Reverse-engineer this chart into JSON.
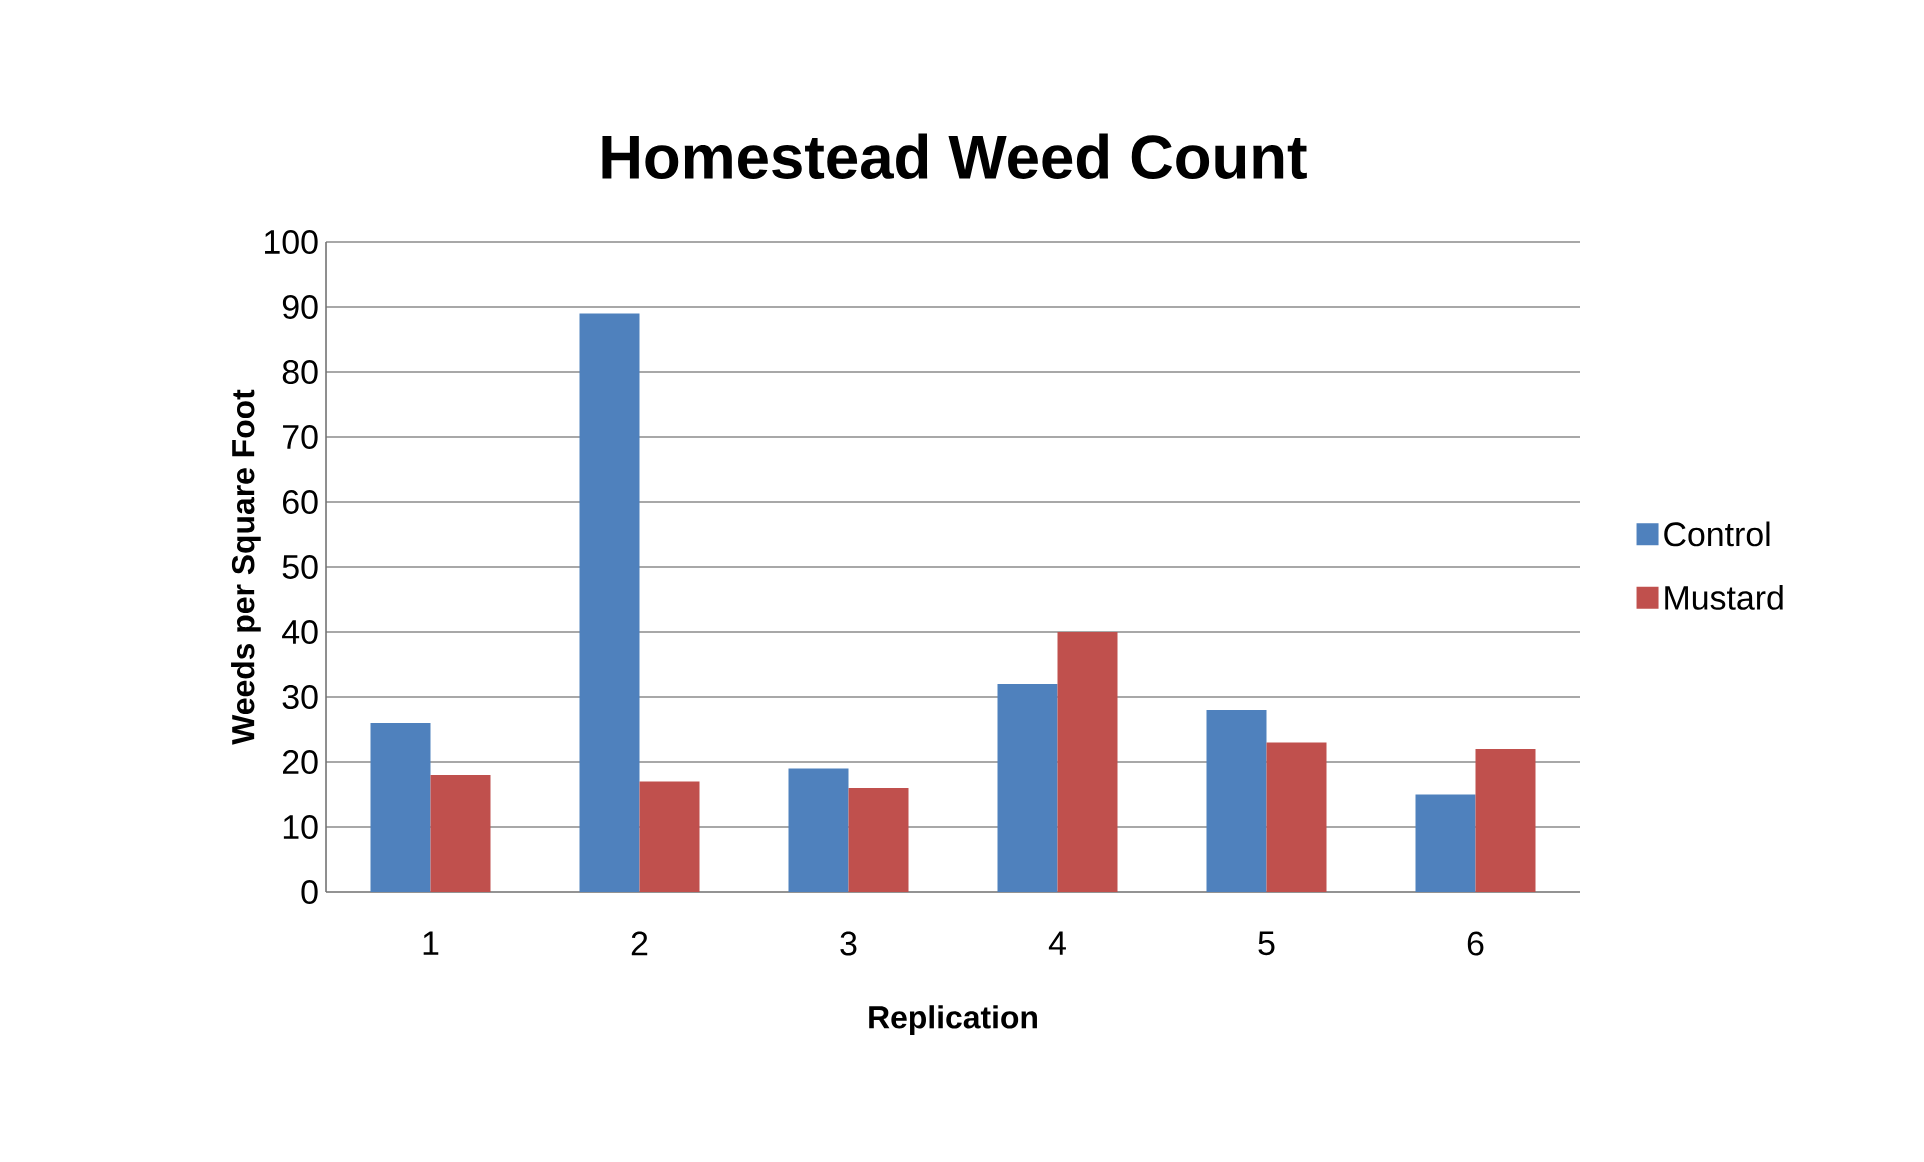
{
  "chart_data": {
    "type": "bar",
    "title": "Homestead Weed Count",
    "xlabel": "Replication",
    "ylabel": "Weeds per Square Foot",
    "categories": [
      "1",
      "2",
      "3",
      "4",
      "5",
      "6"
    ],
    "series": [
      {
        "name": "Control",
        "color": "#4f81bd",
        "values": [
          26,
          89,
          19,
          32,
          28,
          15
        ]
      },
      {
        "name": "Mustard",
        "color": "#c0504d",
        "values": [
          18,
          17,
          16,
          40,
          23,
          22
        ]
      }
    ],
    "ylim": [
      0,
      100
    ],
    "yticks": [
      0,
      10,
      20,
      30,
      40,
      50,
      60,
      70,
      80,
      90,
      100
    ],
    "grid": "y",
    "legend": "right"
  }
}
